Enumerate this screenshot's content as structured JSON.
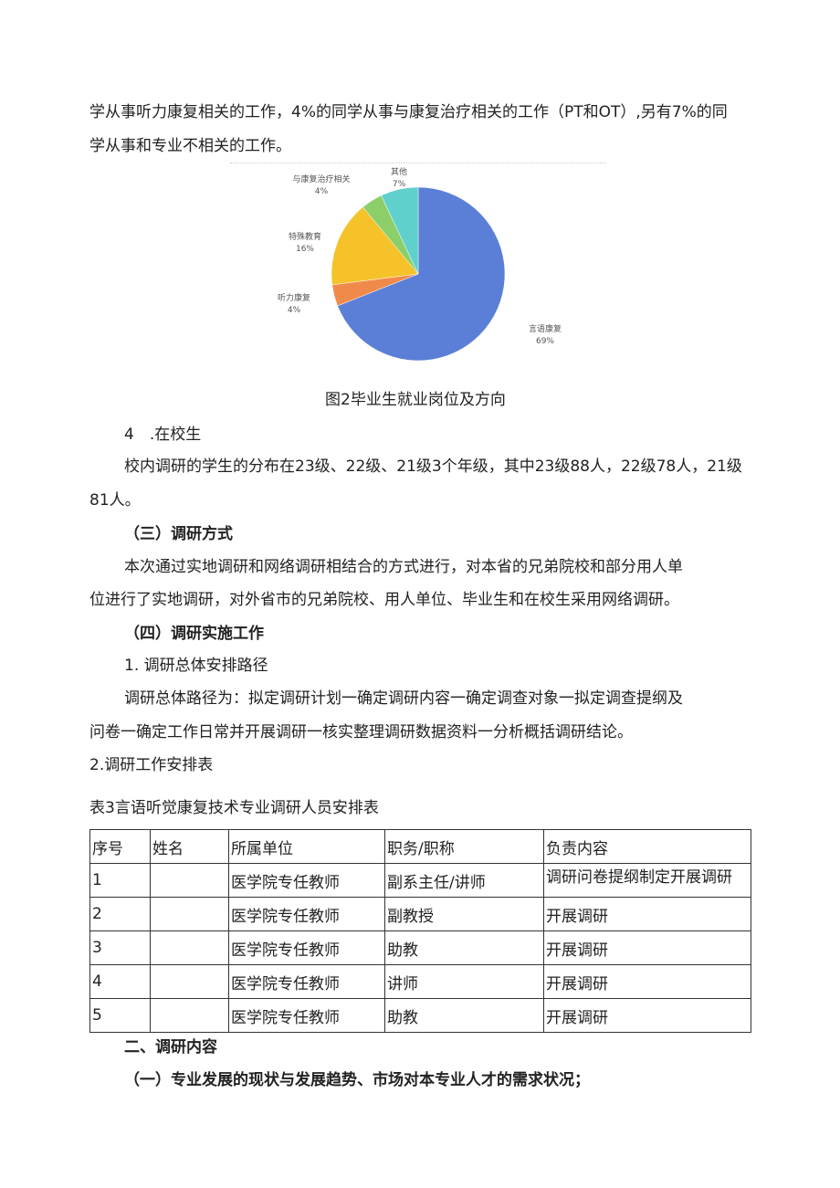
{
  "para1": [
    "学从事听力康复相关的工作，4%的同学从事与康复治疗相关的工作（PT和OT）,另有7%的同",
    "学从事和专业不相关的工作。"
  ],
  "chart_data": {
    "type": "pie",
    "title": "",
    "slices": [
      {
        "label": "言语康复",
        "value": 69,
        "value_label": "69%",
        "color": "#5b7fd6"
      },
      {
        "label": "听力康复",
        "value": 4,
        "value_label": "4%",
        "color": "#f08a4b"
      },
      {
        "label": "特殊教育",
        "value": 16,
        "value_label": "16%",
        "color": "#f5c22a"
      },
      {
        "label": "与康复治疗相关",
        "value": 4,
        "value_label": "4%",
        "color": "#8ccf6a"
      },
      {
        "label": "其他",
        "value": 7,
        "value_label": "7%",
        "color": "#5fd0cc"
      }
    ]
  },
  "caption": "图2毕业生就业岗位及方向",
  "s4": "4　.在校生",
  "s4_text": [
    "校内调研的学生的分布在23级、22级、21级3个年级，其中23级88人，22级78人，21级",
    "81人。"
  ],
  "h3": "（三）调研方式",
  "h3_text": [
    "本次通过实地调研和网络调研相结合的方式进行，对本省的兄弟院校和部分用人单",
    "位进行了实地调研，对外省市的兄弟院校、用人单位、毕业生和在校生采用网络调研。"
  ],
  "h4": "（四）调研实施工作",
  "h4_1": "1. 调研总体安排路径",
  "h4_1_text": [
    "调研总体路径为：拟定调研计划一确定调研内容一确定调查对象一拟定调查提纲及",
    "问卷一确定工作日常并开展调研一核实整理调研数据资料一分析概括调研结论。"
  ],
  "h4_2": "2.调研工作安排表",
  "table_title": "表3言语听觉康复技术专业调研人员安排表",
  "table": {
    "headers": [
      "序号",
      "姓名",
      "所属单位",
      "职务/职称",
      "负责内容"
    ],
    "rows": [
      [
        "1",
        "",
        "医学院专任教师",
        "副系主任/讲师",
        "调研问卷提纲制定开展调研"
      ],
      [
        "2",
        "",
        "医学院专任教师",
        "副教授",
        "开展调研"
      ],
      [
        "3",
        "",
        "医学院专任教师",
        "助教",
        "开展调研"
      ],
      [
        "4",
        "",
        "医学院专任教师",
        "讲师",
        "开展调研"
      ],
      [
        "5",
        "",
        "医学院专任教师",
        "助教",
        "开展调研"
      ]
    ]
  },
  "sec2": "二、调研内容",
  "sec2_1": "（一）专业发展的现状与发展趋势、市场对本专业人才的需求状况；"
}
